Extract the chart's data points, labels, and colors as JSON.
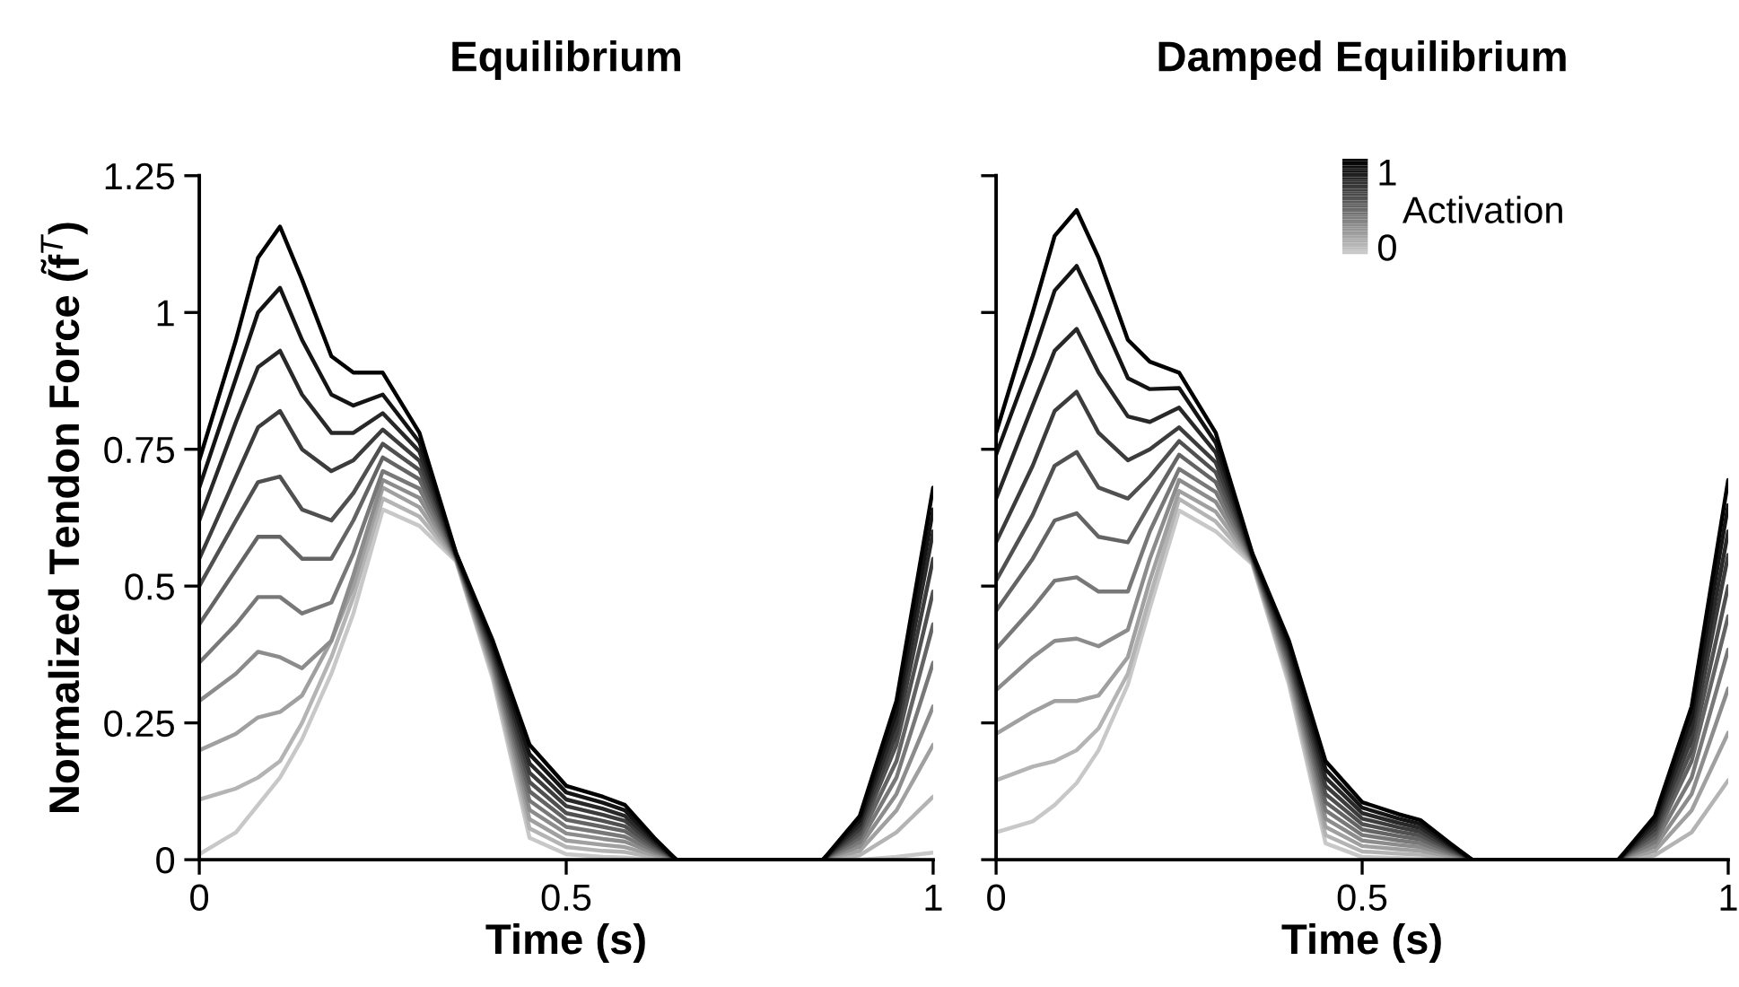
{
  "chart_data": [
    {
      "type": "line",
      "title": "Equilibrium",
      "xlabel": "Time (s)",
      "ylabel": "Normalized Tendon Force (f̃$^{T}$)",
      "xlim": [
        0,
        1
      ],
      "ylim": [
        0,
        1.25
      ],
      "xticks": [
        0,
        {
          "value": 0.5,
          "label": "0.5"
        },
        1
      ],
      "yticks": [
        0,
        {
          "value": 0.25,
          "label": "0.25"
        },
        {
          "value": 0.5,
          "label": "0.5"
        },
        {
          "value": 0.75,
          "label": "0.75"
        },
        1,
        {
          "value": 1.25,
          "label": "1.25"
        }
      ],
      "grid": false,
      "legend": false,
      "x": [
        0,
        0.05,
        0.08,
        0.11,
        0.14,
        0.18,
        0.21,
        0.25,
        0.3,
        0.35,
        0.4,
        0.45,
        0.5,
        0.55,
        0.58,
        0.62,
        0.65,
        0.85,
        0.9,
        0.95,
        1.0
      ],
      "series": [
        {
          "color": "#c8c8c8",
          "values": [
            0.01,
            0.05,
            0.1,
            0.15,
            0.22,
            0.34,
            0.45,
            0.64,
            0.61,
            0.545,
            0.33,
            0.04,
            0.01,
            0.005,
            0.004,
            0,
            0,
            0,
            0,
            0.005,
            0.013
          ]
        },
        {
          "color": "#b4b4b4",
          "values": [
            0.11,
            0.13,
            0.15,
            0.18,
            0.25,
            0.37,
            0.48,
            0.66,
            0.627,
            0.547,
            0.337,
            0.057,
            0.023,
            0.016,
            0.014,
            0.004,
            0,
            0,
            0.008,
            0.05,
            0.115
          ]
        },
        {
          "color": "#a0a0a0",
          "values": [
            0.2,
            0.23,
            0.26,
            0.27,
            0.3,
            0.4,
            0.5,
            0.68,
            0.644,
            0.548,
            0.344,
            0.074,
            0.035,
            0.027,
            0.023,
            0.008,
            0,
            0,
            0.016,
            0.09,
            0.21
          ]
        },
        {
          "color": "#8c8c8c",
          "values": [
            0.29,
            0.34,
            0.38,
            0.37,
            0.35,
            0.4,
            0.52,
            0.694,
            0.661,
            0.55,
            0.351,
            0.091,
            0.048,
            0.038,
            0.033,
            0.012,
            0,
            0,
            0.024,
            0.12,
            0.28
          ]
        },
        {
          "color": "#787878",
          "values": [
            0.36,
            0.43,
            0.48,
            0.48,
            0.45,
            0.47,
            0.56,
            0.71,
            0.678,
            0.551,
            0.358,
            0.108,
            0.06,
            0.049,
            0.042,
            0.016,
            0,
            0,
            0.032,
            0.15,
            0.36
          ]
        },
        {
          "color": "#646464",
          "values": [
            0.43,
            0.53,
            0.59,
            0.59,
            0.55,
            0.55,
            0.62,
            0.735,
            0.695,
            0.553,
            0.365,
            0.125,
            0.073,
            0.06,
            0.052,
            0.02,
            0,
            0,
            0.04,
            0.18,
            0.43
          ]
        },
        {
          "color": "#505050",
          "values": [
            0.5,
            0.62,
            0.69,
            0.7,
            0.64,
            0.62,
            0.67,
            0.76,
            0.712,
            0.554,
            0.372,
            0.142,
            0.085,
            0.071,
            0.061,
            0.024,
            0,
            0,
            0.048,
            0.21,
            0.49
          ]
        },
        {
          "color": "#3c3c3c",
          "values": [
            0.55,
            0.7,
            0.79,
            0.82,
            0.75,
            0.71,
            0.73,
            0.786,
            0.729,
            0.556,
            0.379,
            0.159,
            0.098,
            0.082,
            0.071,
            0.028,
            0,
            0,
            0.056,
            0.23,
            0.55
          ]
        },
        {
          "color": "#282828",
          "values": [
            0.62,
            0.8,
            0.9,
            0.93,
            0.85,
            0.78,
            0.78,
            0.816,
            0.746,
            0.557,
            0.386,
            0.176,
            0.11,
            0.093,
            0.08,
            0.032,
            0,
            0,
            0.064,
            0.25,
            0.6
          ]
        },
        {
          "color": "#141414",
          "values": [
            0.68,
            0.88,
            1.0,
            1.045,
            0.95,
            0.85,
            0.83,
            0.85,
            0.763,
            0.559,
            0.393,
            0.193,
            0.123,
            0.104,
            0.09,
            0.036,
            0,
            0,
            0.072,
            0.27,
            0.64
          ]
        },
        {
          "color": "#000000",
          "values": [
            0.73,
            0.95,
            1.1,
            1.157,
            1.06,
            0.92,
            0.89,
            0.89,
            0.78,
            0.56,
            0.4,
            0.21,
            0.135,
            0.115,
            0.1,
            0.04,
            0,
            0,
            0.08,
            0.29,
            0.68
          ]
        }
      ]
    },
    {
      "type": "line",
      "title": "Damped Equilibrium",
      "xlabel": "Time (s)",
      "xlim": [
        0,
        1
      ],
      "ylim": [
        0,
        1.25
      ],
      "xticks": [
        0,
        {
          "value": 0.5,
          "label": "0.5"
        },
        1
      ],
      "yticks": [
        0,
        0.25,
        0.5,
        0.75,
        1,
        1.25
      ],
      "tick_labels": "x",
      "grid": false,
      "legend": false,
      "annotations": [
        "1",
        "0",
        "Activation"
      ],
      "x": [
        0,
        0.05,
        0.08,
        0.11,
        0.14,
        0.18,
        0.21,
        0.25,
        0.3,
        0.35,
        0.4,
        0.45,
        0.5,
        0.55,
        0.58,
        0.62,
        0.65,
        0.85,
        0.9,
        0.95,
        1.0
      ],
      "series": [
        {
          "color": "#c8c8c8",
          "values": [
            0.05,
            0.07,
            0.1,
            0.14,
            0.2,
            0.32,
            0.46,
            0.638,
            0.6,
            0.54,
            0.32,
            0.03,
            0.005,
            0.003,
            0.002,
            0,
            0,
            0,
            0,
            0,
            0
          ]
        },
        {
          "color": "#b4b4b4",
          "values": [
            0.145,
            0.17,
            0.18,
            0.2,
            0.24,
            0.34,
            0.48,
            0.659,
            0.618,
            0.542,
            0.328,
            0.045,
            0.015,
            0.011,
            0.009,
            0.003,
            0,
            0,
            0.008,
            0.05,
            0.145
          ]
        },
        {
          "color": "#a0a0a0",
          "values": [
            0.23,
            0.27,
            0.29,
            0.29,
            0.3,
            0.37,
            0.51,
            0.674,
            0.636,
            0.544,
            0.336,
            0.06,
            0.025,
            0.019,
            0.016,
            0.006,
            0,
            0,
            0.016,
            0.09,
            0.232
          ]
        },
        {
          "color": "#8c8c8c",
          "values": [
            0.31,
            0.37,
            0.4,
            0.404,
            0.39,
            0.42,
            0.55,
            0.694,
            0.654,
            0.546,
            0.344,
            0.075,
            0.035,
            0.027,
            0.023,
            0.009,
            0,
            0,
            0.024,
            0.12,
            0.313
          ]
        },
        {
          "color": "#787878",
          "values": [
            0.385,
            0.46,
            0.51,
            0.516,
            0.49,
            0.49,
            0.6,
            0.714,
            0.672,
            0.548,
            0.352,
            0.09,
            0.045,
            0.035,
            0.03,
            0.012,
            0,
            0,
            0.032,
            0.15,
            0.384
          ]
        },
        {
          "color": "#646464",
          "values": [
            0.455,
            0.55,
            0.62,
            0.633,
            0.59,
            0.58,
            0.65,
            0.74,
            0.69,
            0.55,
            0.36,
            0.105,
            0.055,
            0.043,
            0.037,
            0.015,
            0,
            0,
            0.04,
            0.18,
            0.445
          ]
        },
        {
          "color": "#505050",
          "values": [
            0.51,
            0.63,
            0.72,
            0.745,
            0.68,
            0.66,
            0.7,
            0.765,
            0.708,
            0.552,
            0.368,
            0.12,
            0.065,
            0.051,
            0.044,
            0.018,
            0,
            0,
            0.048,
            0.2,
            0.5
          ]
        },
        {
          "color": "#3c3c3c",
          "values": [
            0.58,
            0.72,
            0.82,
            0.855,
            0.78,
            0.73,
            0.75,
            0.79,
            0.726,
            0.554,
            0.376,
            0.135,
            0.075,
            0.059,
            0.051,
            0.021,
            0,
            0,
            0.056,
            0.22,
            0.557
          ]
        },
        {
          "color": "#282828",
          "values": [
            0.66,
            0.83,
            0.93,
            0.97,
            0.89,
            0.81,
            0.8,
            0.826,
            0.744,
            0.556,
            0.384,
            0.15,
            0.085,
            0.067,
            0.058,
            0.024,
            0,
            0,
            0.064,
            0.24,
            0.6
          ]
        },
        {
          "color": "#141414",
          "values": [
            0.74,
            0.92,
            1.04,
            1.085,
            1.0,
            0.88,
            0.86,
            0.862,
            0.762,
            0.558,
            0.392,
            0.165,
            0.095,
            0.075,
            0.065,
            0.027,
            0,
            0,
            0.072,
            0.26,
            0.648
          ]
        },
        {
          "color": "#000000",
          "values": [
            0.78,
            1.0,
            1.14,
            1.187,
            1.1,
            0.95,
            0.91,
            0.89,
            0.78,
            0.56,
            0.4,
            0.18,
            0.105,
            0.083,
            0.072,
            0.03,
            0,
            0,
            0.08,
            0.28,
            0.694
          ]
        }
      ]
    }
  ]
}
